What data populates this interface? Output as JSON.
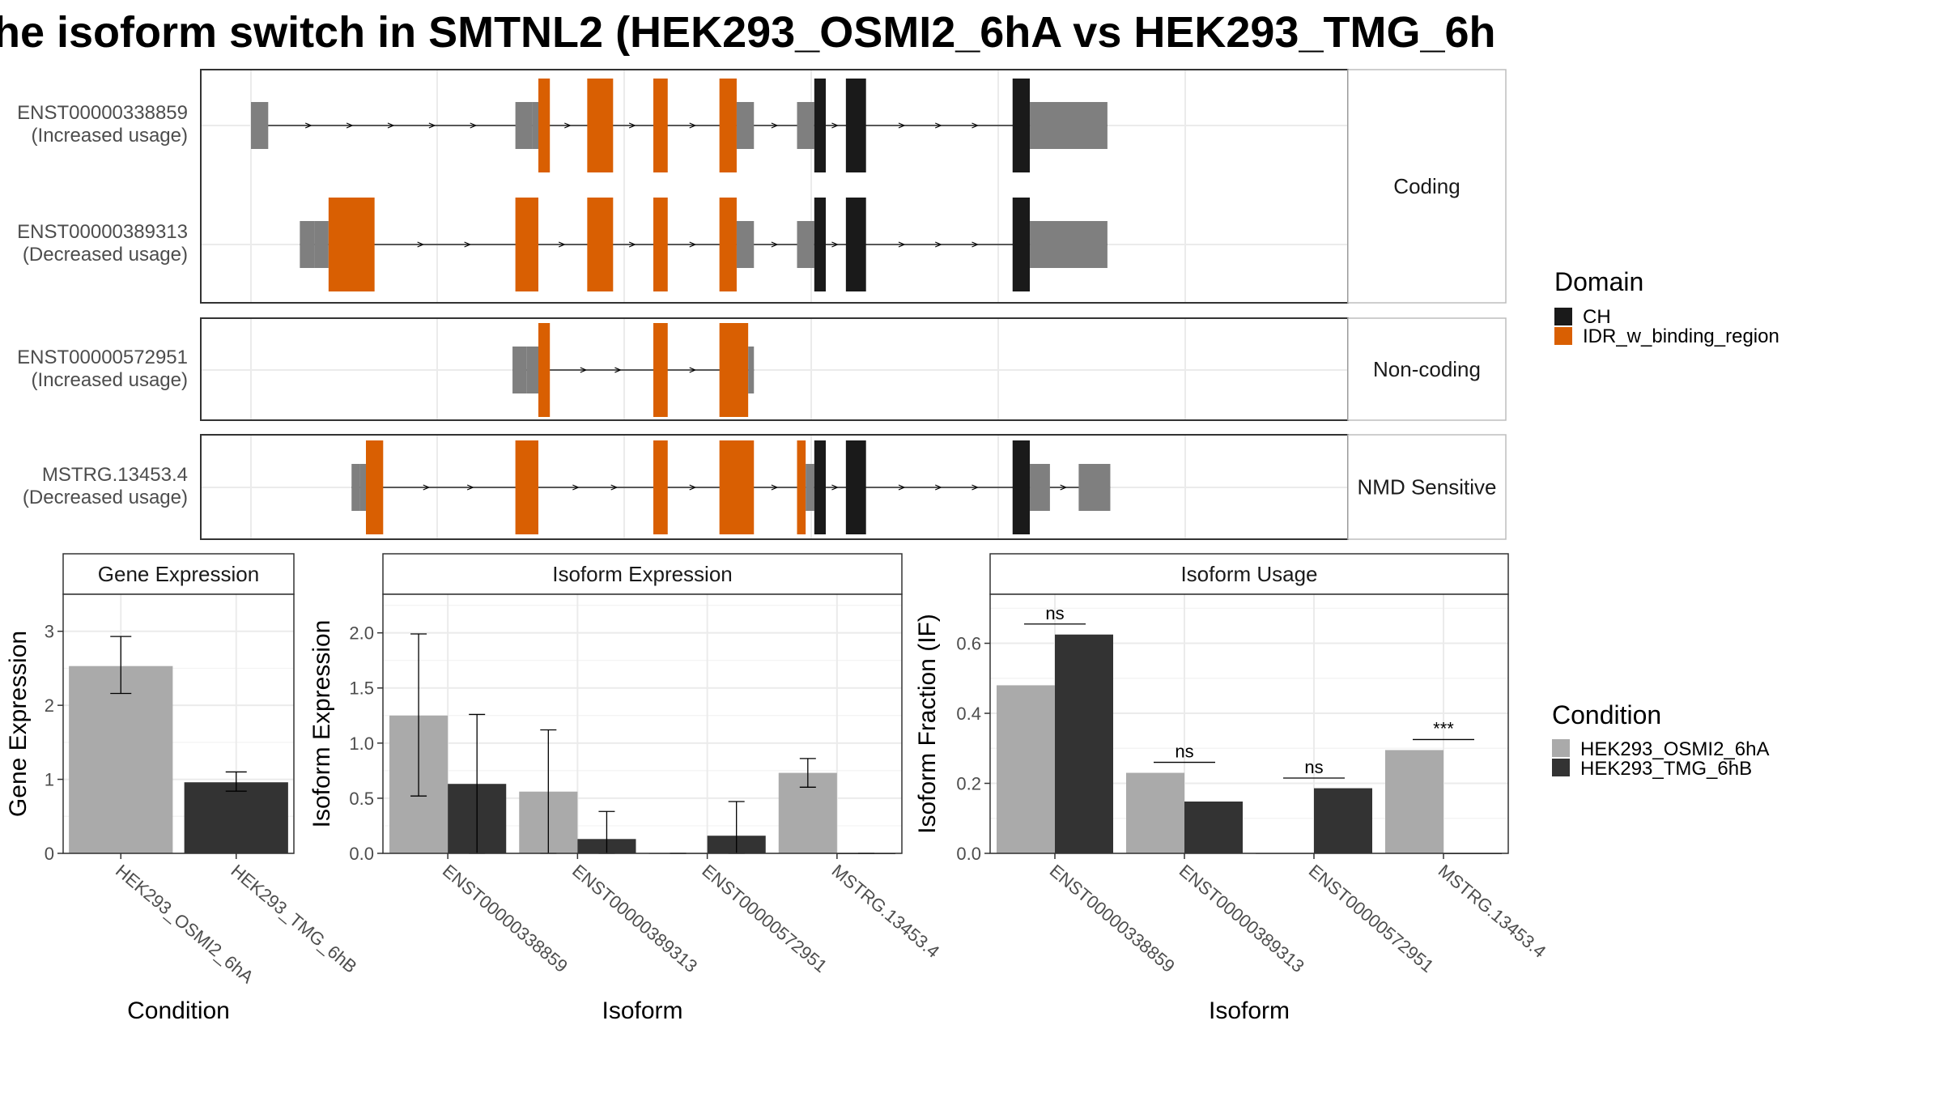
{
  "title": "he isoform switch in SMTNL2 (HEK293_OSMI2_6hA vs HEK293_TMG_6h",
  "colors": {
    "utr": "#7f7f7f",
    "ch": "#1a1a1a",
    "idr": "#d95f02",
    "cond_a": "#aaaaaa",
    "cond_b": "#333333"
  },
  "structure": {
    "facets": [
      {
        "label": "Coding",
        "transcripts": [
          0,
          1
        ]
      },
      {
        "label": "Non-coding",
        "transcripts": [
          2
        ]
      },
      {
        "label": "NMD Sensitive",
        "transcripts": [
          3
        ]
      }
    ],
    "transcripts": [
      {
        "id": "ENST00000338859",
        "usage": "(Increased usage)",
        "features": [
          {
            "kind": "utr",
            "start": 0.0,
            "end": 0.6
          },
          {
            "kind": "utr",
            "start": 9.2,
            "end": 9.8
          },
          {
            "kind": "utr",
            "start": 9.8,
            "end": 10.0
          },
          {
            "kind": "idr",
            "start": 10.0,
            "end": 10.4
          },
          {
            "kind": "idr",
            "start": 11.7,
            "end": 12.6
          },
          {
            "kind": "idr",
            "start": 14.0,
            "end": 14.5
          },
          {
            "kind": "idr",
            "start": 16.3,
            "end": 16.9
          },
          {
            "kind": "utr",
            "start": 16.9,
            "end": 17.5
          },
          {
            "kind": "utr",
            "start": 19.0,
            "end": 19.6
          },
          {
            "kind": "ch",
            "start": 19.6,
            "end": 20.0
          },
          {
            "kind": "ch",
            "start": 20.7,
            "end": 21.4
          },
          {
            "kind": "ch",
            "start": 26.5,
            "end": 27.1
          },
          {
            "kind": "utr",
            "start": 27.1,
            "end": 29.8
          }
        ]
      },
      {
        "id": "ENST00000389313",
        "usage": "(Decreased usage)",
        "features": [
          {
            "kind": "utr",
            "start": 1.7,
            "end": 2.2
          },
          {
            "kind": "utr",
            "start": 2.2,
            "end": 2.7
          },
          {
            "kind": "idr",
            "start": 2.7,
            "end": 4.3
          },
          {
            "kind": "idr",
            "start": 9.2,
            "end": 10.0
          },
          {
            "kind": "idr",
            "start": 11.7,
            "end": 12.6
          },
          {
            "kind": "idr",
            "start": 14.0,
            "end": 14.5
          },
          {
            "kind": "idr",
            "start": 16.3,
            "end": 16.9
          },
          {
            "kind": "utr",
            "start": 16.9,
            "end": 17.5
          },
          {
            "kind": "utr",
            "start": 19.0,
            "end": 19.6
          },
          {
            "kind": "ch",
            "start": 19.6,
            "end": 20.0
          },
          {
            "kind": "ch",
            "start": 20.7,
            "end": 21.4
          },
          {
            "kind": "ch",
            "start": 26.5,
            "end": 27.1
          },
          {
            "kind": "utr",
            "start": 27.1,
            "end": 29.8
          }
        ]
      },
      {
        "id": "ENST00000572951",
        "usage": "(Increased usage)",
        "features": [
          {
            "kind": "utr",
            "start": 9.1,
            "end": 9.6
          },
          {
            "kind": "utr",
            "start": 9.6,
            "end": 10.0
          },
          {
            "kind": "idr",
            "start": 10.0,
            "end": 10.4
          },
          {
            "kind": "idr",
            "start": 14.0,
            "end": 14.5
          },
          {
            "kind": "idr",
            "start": 16.3,
            "end": 17.3
          },
          {
            "kind": "utr",
            "start": 17.3,
            "end": 17.5
          }
        ]
      },
      {
        "id": "MSTRG.13453.4",
        "usage": "(Decreased usage)",
        "features": [
          {
            "kind": "utr",
            "start": 3.5,
            "end": 3.8
          },
          {
            "kind": "utr",
            "start": 3.8,
            "end": 4.0
          },
          {
            "kind": "idr",
            "start": 4.0,
            "end": 4.6
          },
          {
            "kind": "idr",
            "start": 9.2,
            "end": 10.0
          },
          {
            "kind": "idr",
            "start": 14.0,
            "end": 14.5
          },
          {
            "kind": "idr",
            "start": 16.3,
            "end": 17.5
          },
          {
            "kind": "idr",
            "start": 19.0,
            "end": 19.3
          },
          {
            "kind": "utr",
            "start": 19.3,
            "end": 19.6
          },
          {
            "kind": "ch",
            "start": 19.6,
            "end": 20.0
          },
          {
            "kind": "ch",
            "start": 20.7,
            "end": 21.4
          },
          {
            "kind": "ch",
            "start": 26.5,
            "end": 27.1
          },
          {
            "kind": "utr",
            "start": 27.1,
            "end": 27.8
          },
          {
            "kind": "utr",
            "start": 28.8,
            "end": 29.9
          }
        ]
      }
    ]
  },
  "legends": {
    "domain": {
      "title": "Domain",
      "items": [
        {
          "label": "CH",
          "color": "#1a1a1a"
        },
        {
          "label": "IDR_w_binding_region",
          "color": "#d95f02"
        }
      ]
    },
    "condition": {
      "title": "Condition",
      "items": [
        {
          "label": "HEK293_OSMI2_6hA",
          "color": "#aaaaaa"
        },
        {
          "label": "HEK293_TMG_6hB",
          "color": "#333333"
        }
      ]
    }
  },
  "chart_data": [
    {
      "type": "bar",
      "title": "Gene Expression",
      "xlabel": "Condition",
      "ylabel": "Gene Expression",
      "ylim": [
        0,
        3.5
      ],
      "yticks": [
        0,
        1,
        2,
        3
      ],
      "categories": [
        "HEK293_OSMI2_6hA",
        "HEK293_TMG_6hB"
      ],
      "bars": [
        {
          "category": "HEK293_OSMI2_6hA",
          "condition": 0,
          "value": 2.53,
          "err_low": 2.16,
          "err_high": 2.93
        },
        {
          "category": "HEK293_TMG_6hB",
          "condition": 1,
          "value": 0.96,
          "err_low": 0.84,
          "err_high": 1.1
        }
      ],
      "grid": true
    },
    {
      "type": "bar",
      "title": "Isoform Expression",
      "xlabel": "Isoform",
      "ylabel": "Isoform Expression",
      "ylim": [
        0,
        2.35
      ],
      "yticks": [
        "0.0",
        "0.5",
        "1.0",
        "1.5",
        "2.0"
      ],
      "categories": [
        "ENST00000338859",
        "ENST00000389313",
        "ENST00000572951",
        "MSTRG.13453.4"
      ],
      "series": [
        {
          "name": "HEK293_OSMI2_6hA",
          "values": [
            1.25,
            0.56,
            0.0,
            0.73
          ],
          "err_low": [
            0.52,
            0.0,
            0.0,
            0.6
          ],
          "err_high": [
            1.99,
            1.12,
            0.0,
            0.86
          ]
        },
        {
          "name": "HEK293_TMG_6hB",
          "values": [
            0.63,
            0.13,
            0.16,
            0.0
          ],
          "err_low": [
            0.0,
            0.0,
            0.0,
            0.0
          ],
          "err_high": [
            1.26,
            0.38,
            0.47,
            0.0
          ]
        }
      ],
      "grid": true
    },
    {
      "type": "bar",
      "title": "Isoform Usage",
      "xlabel": "Isoform",
      "ylabel": "Isoform Fraction (IF)",
      "ylim": [
        0,
        0.74
      ],
      "yticks": [
        "0.0",
        "0.2",
        "0.4",
        "0.6"
      ],
      "categories": [
        "ENST00000338859",
        "ENST00000389313",
        "ENST00000572951",
        "MSTRG.13453.4"
      ],
      "series": [
        {
          "name": "HEK293_OSMI2_6hA",
          "values": [
            0.48,
            0.23,
            0.0,
            0.295
          ]
        },
        {
          "name": "HEK293_TMG_6hB",
          "values": [
            0.625,
            0.148,
            0.186,
            0.0
          ]
        }
      ],
      "significance": [
        {
          "category": "ENST00000338859",
          "label": "ns",
          "y": 0.655
        },
        {
          "category": "ENST00000389313",
          "label": "ns",
          "y": 0.26
        },
        {
          "category": "ENST00000572951",
          "label": "ns",
          "y": 0.215
        },
        {
          "category": "MSTRG.13453.4",
          "label": "***",
          "y": 0.325
        }
      ],
      "grid": true
    }
  ]
}
